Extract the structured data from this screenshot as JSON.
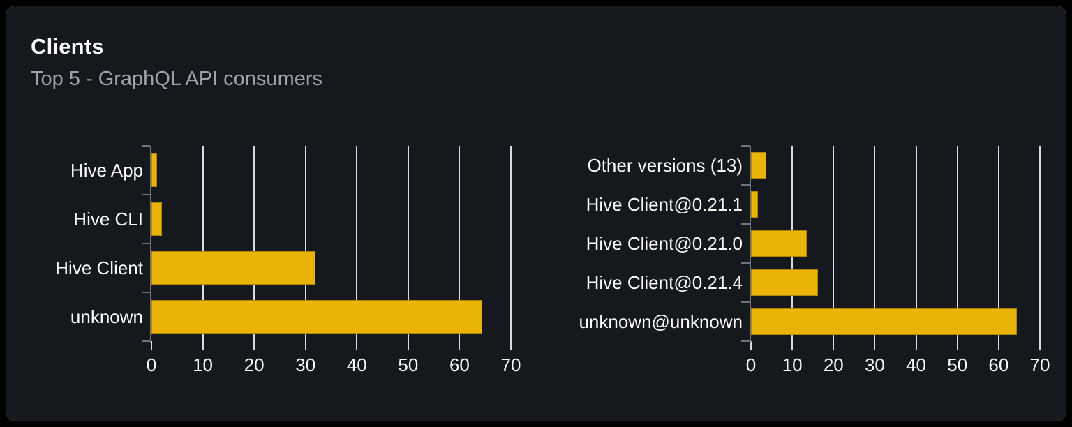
{
  "card": {
    "title": "Clients",
    "subtitle": "Top 5 - GraphQL API consumers"
  },
  "chart_data": [
    {
      "type": "bar",
      "orientation": "horizontal",
      "title": "",
      "categories": [
        "Hive App",
        "Hive CLI",
        "Hive Client",
        "unknown"
      ],
      "values": [
        1.1,
        2,
        32,
        64.4
      ],
      "xlabel": "",
      "ylabel": "",
      "xlim": [
        0,
        70
      ],
      "xticks": [
        0,
        10,
        20,
        30,
        40,
        50,
        60,
        70
      ],
      "grid": true,
      "legend": "none",
      "bar_color": "#eab308"
    },
    {
      "type": "bar",
      "orientation": "horizontal",
      "title": "",
      "categories": [
        "Other versions (13)",
        "Hive Client@0.21.1",
        "Hive Client@0.21.0",
        "Hive Client@0.21.4",
        "unknown@unknown"
      ],
      "values": [
        3.8,
        1.7,
        13.6,
        16.3,
        64.4
      ],
      "xlabel": "",
      "ylabel": "",
      "xlim": [
        0,
        70
      ],
      "xticks": [
        0,
        10,
        20,
        30,
        40,
        50,
        60,
        70
      ],
      "grid": true,
      "legend": "none",
      "bar_color": "#eab308"
    }
  ]
}
